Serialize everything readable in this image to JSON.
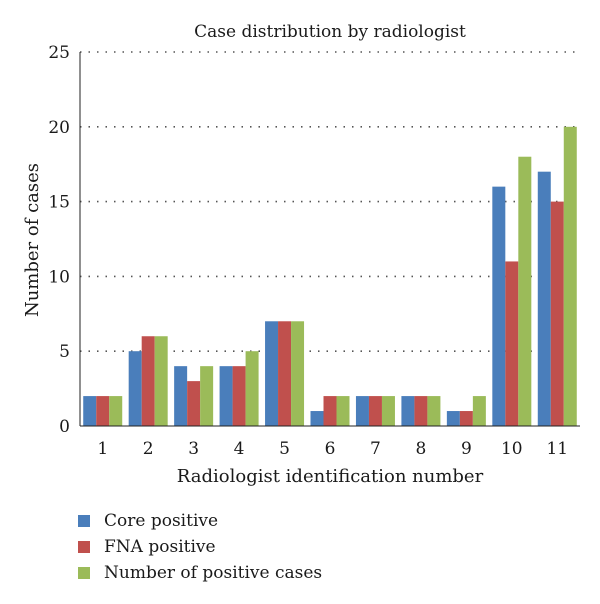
{
  "chart_data": {
    "type": "bar",
    "title": "Case distribution by radiologist",
    "xlabel": "Radiologist identification number",
    "ylabel": "Number of cases",
    "ylim": [
      0,
      25
    ],
    "yticks": [
      0,
      5,
      10,
      15,
      20,
      25
    ],
    "grid": "horizontal dotted",
    "legend_position": "bottom-left",
    "categories": [
      "1",
      "2",
      "3",
      "4",
      "5",
      "6",
      "7",
      "8",
      "9",
      "10",
      "11"
    ],
    "series": [
      {
        "name": "Core positive",
        "color": "#4a7ebb",
        "values": [
          2,
          5,
          4,
          4,
          7,
          1,
          2,
          2,
          1,
          16,
          17
        ]
      },
      {
        "name": "FNA positive",
        "color": "#c0504d",
        "values": [
          2,
          6,
          3,
          4,
          7,
          2,
          2,
          2,
          1,
          11,
          15
        ]
      },
      {
        "name": "Number of positive cases",
        "color": "#9bbb59",
        "values": [
          2,
          6,
          4,
          5,
          7,
          2,
          2,
          2,
          2,
          18,
          20
        ]
      }
    ]
  }
}
